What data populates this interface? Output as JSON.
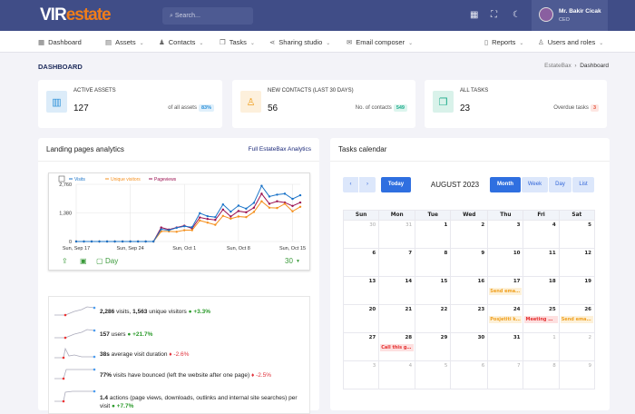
{
  "header": {
    "logo": "VIR estate",
    "search_placeholder": "Search...",
    "user_name": "Mr. Bakir Cicak",
    "user_role": "CEO"
  },
  "nav": {
    "items": [
      {
        "label": "Dashboard"
      },
      {
        "label": "Assets"
      },
      {
        "label": "Contacts"
      },
      {
        "label": "Tasks"
      },
      {
        "label": "Sharing studio"
      },
      {
        "label": "Email composer"
      },
      {
        "label": "Reports"
      },
      {
        "label": "Users and roles"
      }
    ]
  },
  "page": {
    "title": "DASHBOARD",
    "breadcrumb": [
      "EstateBax",
      "Dashboard"
    ]
  },
  "cards": [
    {
      "label": "ACTIVE ASSETS",
      "value": "127",
      "sub": "of all assets",
      "badge": "83%",
      "color": "#2a8fd8"
    },
    {
      "label": "NEW CONTACTS (LAST 30 DAYS)",
      "value": "56",
      "sub": "No. of contacts",
      "badge": "549",
      "color": "#1aaa8a"
    },
    {
      "label": "ALL TASKS",
      "value": "23",
      "sub": "Overdue tasks",
      "badge": "3",
      "color": "#e5533d"
    }
  ],
  "analytics": {
    "title": "Landing pages analytics",
    "link": "Full EstateBax Analytics",
    "period_label": "Day",
    "limit": "30",
    "spark": [
      {
        "bold1": "2,286",
        "t1": " visits, ",
        "bold2": "1,563",
        "t2": " unique visitors",
        "change": "+3.3%",
        "dir": "up"
      },
      {
        "bold1": "157",
        "t1": " users",
        "change": "+21.7%",
        "dir": "up"
      },
      {
        "bold1": "38s",
        "t1": " average visit duration",
        "change": "-2.6%",
        "dir": "down"
      },
      {
        "bold1": "77%",
        "t1": " visits have bounced (left the website after one page)",
        "change": "-2.5%",
        "dir": "down"
      },
      {
        "bold1": "1.4",
        "t1": " actions (page views, downloads, outlinks and internal site searches) per visit",
        "change": "+7.7%",
        "dir": "up"
      }
    ]
  },
  "chart_data": {
    "type": "line",
    "x_ticks": [
      "Sun, Sep 17",
      "Sun, Sep 24",
      "Sun, Oct 1",
      "Sun, Oct 8",
      "Sun, Oct 15"
    ],
    "y_ticks": [
      "0",
      "1,380",
      "2,760"
    ],
    "ylim": [
      0,
      2760
    ],
    "grid": true,
    "legend": "top-left",
    "x": [
      "Sep 17",
      "Sep 18",
      "Sep 19",
      "Sep 20",
      "Sep 21",
      "Sep 22",
      "Sep 23",
      "Sep 24",
      "Sep 25",
      "Sep 26",
      "Sep 27",
      "Sep 28",
      "Sep 29",
      "Sep 30",
      "Oct 1",
      "Oct 2",
      "Oct 3",
      "Oct 4",
      "Oct 5",
      "Oct 6",
      "Oct 7",
      "Oct 8",
      "Oct 9",
      "Oct 10",
      "Oct 11",
      "Oct 12",
      "Oct 13",
      "Oct 14",
      "Oct 15",
      "Oct 16"
    ],
    "series": [
      {
        "name": "Visits",
        "color": "#1a73c8",
        "values": [
          0,
          0,
          0,
          0,
          0,
          0,
          0,
          0,
          0,
          0,
          0,
          590,
          545,
          660,
          735,
          690,
          1365,
          1220,
          1175,
          1790,
          1440,
          1730,
          1585,
          1865,
          2685,
          2170,
          2260,
          2305,
          2055,
          2230
        ]
      },
      {
        "name": "Unique visitors",
        "color": "#f5901e",
        "values": [
          0,
          0,
          0,
          0,
          0,
          0,
          0,
          0,
          0,
          0,
          0,
          485,
          485,
          470,
          545,
          545,
          1015,
          910,
          805,
          1235,
          1100,
          1205,
          1175,
          1425,
          1940,
          1630,
          1615,
          1820,
          1455,
          1675
        ]
      },
      {
        "name": "Pageviews",
        "color": "#9b1050",
        "values": [
          0,
          0,
          0,
          0,
          0,
          0,
          0,
          0,
          0,
          0,
          0,
          675,
          575,
          675,
          765,
          630,
          1160,
          1085,
          1040,
          1540,
          1205,
          1470,
          1410,
          1630,
          2305,
          1820,
          1940,
          1880,
          1715,
          1880
        ]
      }
    ]
  },
  "calendar": {
    "title": "Tasks calendar",
    "month": "AUGUST 2023",
    "today": "Today",
    "views": [
      "Month",
      "Week",
      "Day",
      "List"
    ],
    "days": [
      "Sun",
      "Mon",
      "Tue",
      "Wed",
      "Thu",
      "Fri",
      "Sat"
    ],
    "weeks": [
      [
        {
          "d": "30",
          "o": 1
        },
        {
          "d": "31",
          "o": 1
        },
        {
          "d": "1"
        },
        {
          "d": "2"
        },
        {
          "d": "3"
        },
        {
          "d": "4"
        },
        {
          "d": "5"
        }
      ],
      [
        {
          "d": "6"
        },
        {
          "d": "7"
        },
        {
          "d": "8"
        },
        {
          "d": "9"
        },
        {
          "d": "10"
        },
        {
          "d": "11"
        },
        {
          "d": "12"
        }
      ],
      [
        {
          "d": "13"
        },
        {
          "d": "14"
        },
        {
          "d": "15"
        },
        {
          "d": "16"
        },
        {
          "d": "17",
          "ev": "Send email ...",
          "c": "y"
        },
        {
          "d": "18"
        },
        {
          "d": "19"
        }
      ],
      [
        {
          "d": "20"
        },
        {
          "d": "21"
        },
        {
          "d": "22"
        },
        {
          "d": "23"
        },
        {
          "d": "24",
          "ev": "Posjetiti kuc...",
          "c": "y"
        },
        {
          "d": "25",
          "ev": "Meeting wit...",
          "c": "r"
        },
        {
          "d": "26",
          "ev": "Send email ...",
          "c": "y"
        }
      ],
      [
        {
          "d": "27"
        },
        {
          "d": "28",
          "ev": "Call this guy",
          "c": "r"
        },
        {
          "d": "29"
        },
        {
          "d": "30"
        },
        {
          "d": "31"
        },
        {
          "d": "1",
          "o": 1
        },
        {
          "d": "2",
          "o": 1
        }
      ],
      [
        {
          "d": "3",
          "o": 1
        },
        {
          "d": "4",
          "o": 1
        },
        {
          "d": "5",
          "o": 1
        },
        {
          "d": "6",
          "o": 1
        },
        {
          "d": "7",
          "o": 1
        },
        {
          "d": "8",
          "o": 1
        },
        {
          "d": "9",
          "o": 1
        }
      ]
    ]
  }
}
